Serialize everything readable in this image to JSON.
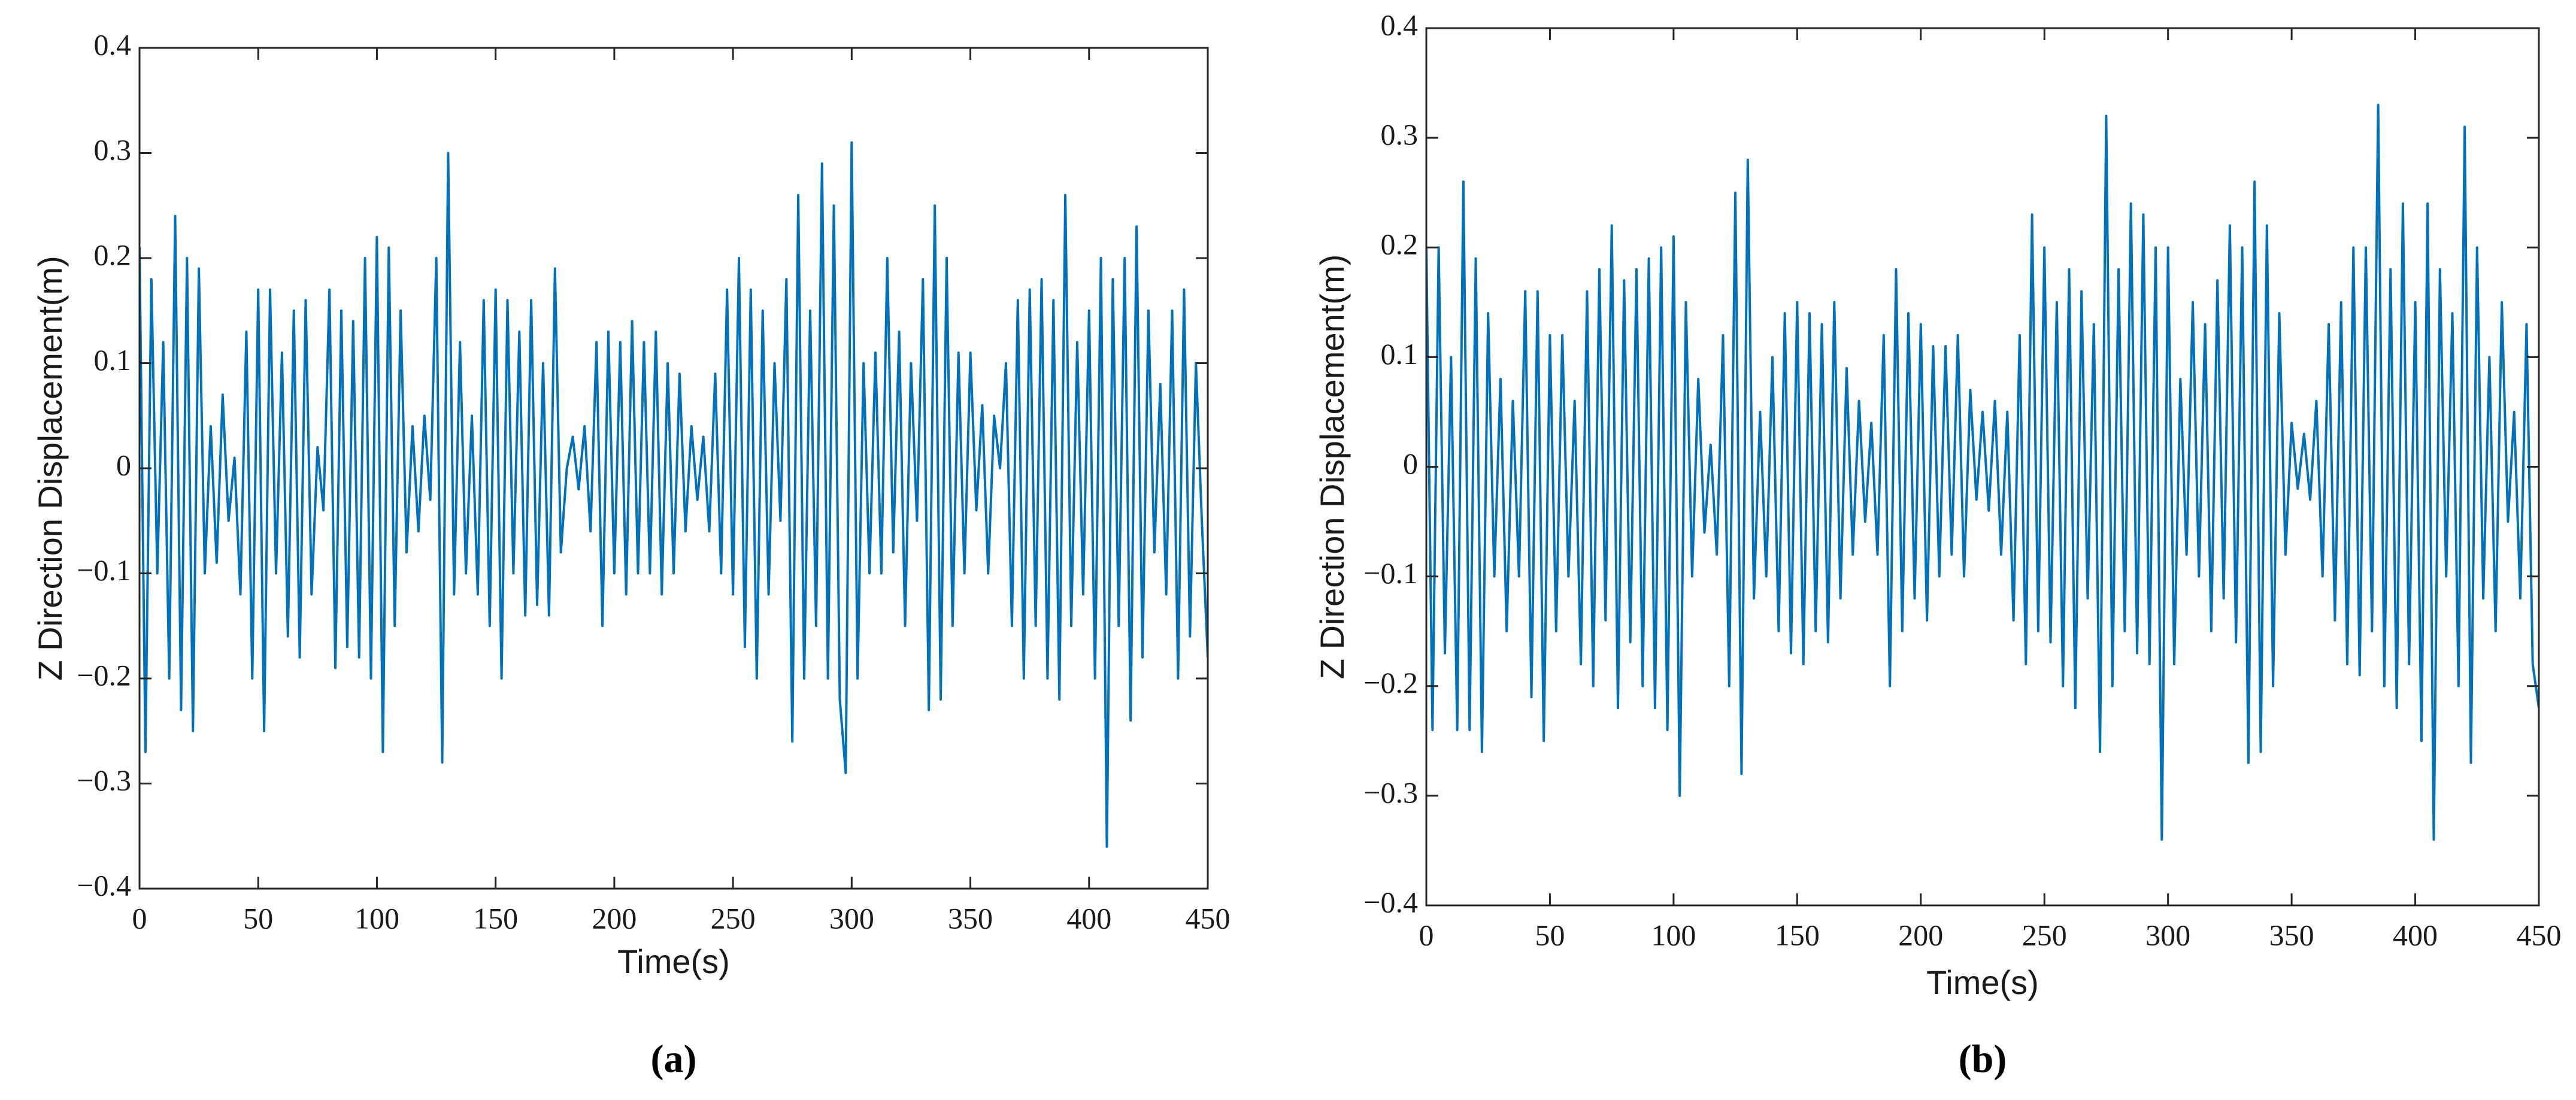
{
  "chart_data": [
    {
      "type": "line",
      "label": "(a)",
      "xlabel": "Time(s)",
      "ylabel": "Z Direction Displacement(m)",
      "color": "#0072bd",
      "xlim": [
        0,
        450
      ],
      "ylim": [
        -0.4,
        0.4
      ],
      "xticks": [
        0,
        50,
        100,
        150,
        200,
        250,
        300,
        350,
        400,
        450
      ],
      "yticks": [
        {
          "value": -0.4,
          "label": "−0.4"
        },
        {
          "value": -0.3,
          "label": "−0.3"
        },
        {
          "value": -0.2,
          "label": "−0.2"
        },
        {
          "value": -0.1,
          "label": "−0.1"
        },
        0,
        0.1,
        0.2,
        0.3,
        0.4
      ],
      "x": [
        0,
        2.5,
        5,
        7.5,
        10,
        12.5,
        15,
        17.5,
        20,
        22.5,
        25,
        27.5,
        30,
        32.5,
        35,
        37.5,
        40,
        42.5,
        45,
        47.5,
        50,
        52.5,
        55,
        57.5,
        60,
        62.5,
        65,
        67.5,
        70,
        72.5,
        75,
        77.5,
        80,
        82.5,
        85,
        87.5,
        90,
        92.5,
        95,
        97.5,
        100,
        102.5,
        105,
        107.5,
        110,
        112.5,
        115,
        117.5,
        120,
        122.5,
        125,
        127.5,
        130,
        132.5,
        135,
        137.5,
        140,
        142.5,
        145,
        147.5,
        150,
        152.5,
        155,
        157.5,
        160,
        162.5,
        165,
        167.5,
        170,
        172.5,
        175,
        177.5,
        180,
        182.5,
        185,
        187.5,
        190,
        192.5,
        195,
        197.5,
        200,
        202.5,
        205,
        207.5,
        210,
        212.5,
        215,
        217.5,
        220,
        222.5,
        225,
        227.5,
        230,
        232.5,
        235,
        237.5,
        240,
        242.5,
        245,
        247.5,
        250,
        252.5,
        255,
        257.5,
        260,
        262.5,
        265,
        267.5,
        270,
        272.5,
        275,
        277.5,
        280,
        282.5,
        285,
        287.5,
        290,
        292.5,
        295,
        297.5,
        300,
        302.5,
        305,
        307.5,
        310,
        312.5,
        315,
        317.5,
        320,
        322.5,
        325,
        327.5,
        330,
        332.5,
        335,
        337.5,
        340,
        342.5,
        345,
        347.5,
        350,
        352.5,
        355,
        357.5,
        360,
        362.5,
        365,
        367.5,
        370,
        372.5,
        375,
        377.5,
        380,
        382.5,
        385,
        387.5,
        390,
        392.5,
        395,
        397.5,
        400,
        402.5,
        405,
        407.5,
        410,
        412.5,
        415,
        417.5,
        420,
        422.5,
        425,
        427.5,
        430,
        432.5,
        435,
        437.5,
        440,
        442.5,
        445,
        447.5,
        450
      ],
      "values": [
        0.21,
        -0.27,
        0.18,
        -0.1,
        0.12,
        -0.2,
        0.24,
        -0.23,
        0.2,
        -0.25,
        0.19,
        -0.1,
        0.04,
        -0.09,
        0.07,
        -0.05,
        0.01,
        -0.12,
        0.13,
        -0.2,
        0.17,
        -0.25,
        0.17,
        -0.1,
        0.11,
        -0.16,
        0.15,
        -0.18,
        0.16,
        -0.12,
        0.02,
        -0.04,
        0.17,
        -0.19,
        0.15,
        -0.17,
        0.14,
        -0.18,
        0.2,
        -0.2,
        0.22,
        -0.27,
        0.21,
        -0.15,
        0.15,
        -0.08,
        0.04,
        -0.06,
        0.05,
        -0.03,
        0.2,
        -0.28,
        0.3,
        -0.12,
        0.12,
        -0.1,
        0.05,
        -0.12,
        0.16,
        -0.15,
        0.17,
        -0.2,
        0.16,
        -0.1,
        0.13,
        -0.14,
        0.16,
        -0.13,
        0.1,
        -0.14,
        0.19,
        -0.08,
        0,
        0.03,
        -0.02,
        0.04,
        -0.06,
        0.12,
        -0.15,
        0.13,
        -0.1,
        0.12,
        -0.12,
        0.14,
        -0.1,
        0.12,
        -0.1,
        0.13,
        -0.12,
        0.1,
        -0.1,
        0.09,
        -0.06,
        0.04,
        -0.03,
        0.03,
        -0.06,
        0.09,
        -0.1,
        0.17,
        -0.12,
        0.2,
        -0.17,
        0.17,
        -0.2,
        0.15,
        -0.12,
        0.1,
        -0.05,
        0.18,
        -0.26,
        0.26,
        -0.2,
        0.15,
        -0.15,
        0.29,
        -0.2,
        0.25,
        -0.22,
        -0.29,
        0.31,
        -0.2,
        0.1,
        -0.1,
        0.11,
        -0.1,
        0.2,
        -0.08,
        0.13,
        -0.15,
        0.1,
        -0.05,
        0.18,
        -0.23,
        0.25,
        -0.22,
        0.2,
        -0.15,
        0.11,
        -0.1,
        0.11,
        -0.04,
        0.06,
        -0.1,
        0.05,
        0,
        0.1,
        -0.15,
        0.16,
        -0.2,
        0.17,
        -0.15,
        0.18,
        -0.2,
        0.16,
        -0.22,
        0.26,
        -0.15,
        0.12,
        -0.12,
        0.15,
        -0.2,
        0.2,
        -0.36,
        0.18,
        -0.15,
        0.2,
        -0.24,
        0.23,
        -0.18,
        0.15,
        -0.08,
        0.08,
        -0.12,
        0.15,
        -0.2,
        0.17,
        -0.16,
        0.1,
        -0.05,
        -0.18
      ]
    },
    {
      "type": "line",
      "label": "(b)",
      "xlabel": "Time(s)",
      "ylabel": "Z Direction Displacement(m)",
      "color": "#0072bd",
      "xlim": [
        0,
        450
      ],
      "ylim": [
        -0.4,
        0.4
      ],
      "xticks": [
        0,
        50,
        100,
        150,
        200,
        250,
        300,
        350,
        400,
        450
      ],
      "yticks": [
        {
          "value": -0.4,
          "label": "−0.4"
        },
        {
          "value": -0.3,
          "label": "−0.3"
        },
        {
          "value": -0.2,
          "label": "−0.2"
        },
        {
          "value": -0.1,
          "label": "−0.1"
        },
        0,
        0.1,
        0.2,
        0.3,
        0.4
      ],
      "x": [
        0,
        2.5,
        5,
        7.5,
        10,
        12.5,
        15,
        17.5,
        20,
        22.5,
        25,
        27.5,
        30,
        32.5,
        35,
        37.5,
        40,
        42.5,
        45,
        47.5,
        50,
        52.5,
        55,
        57.5,
        60,
        62.5,
        65,
        67.5,
        70,
        72.5,
        75,
        77.5,
        80,
        82.5,
        85,
        87.5,
        90,
        92.5,
        95,
        97.5,
        100,
        102.5,
        105,
        107.5,
        110,
        112.5,
        115,
        117.5,
        120,
        122.5,
        125,
        127.5,
        130,
        132.5,
        135,
        137.5,
        140,
        142.5,
        145,
        147.5,
        150,
        152.5,
        155,
        157.5,
        160,
        162.5,
        165,
        167.5,
        170,
        172.5,
        175,
        177.5,
        180,
        182.5,
        185,
        187.5,
        190,
        192.5,
        195,
        197.5,
        200,
        202.5,
        205,
        207.5,
        210,
        212.5,
        215,
        217.5,
        220,
        222.5,
        225,
        227.5,
        230,
        232.5,
        235,
        237.5,
        240,
        242.5,
        245,
        247.5,
        250,
        252.5,
        255,
        257.5,
        260,
        262.5,
        265,
        267.5,
        270,
        272.5,
        275,
        277.5,
        280,
        282.5,
        285,
        287.5,
        290,
        292.5,
        295,
        297.5,
        300,
        302.5,
        305,
        307.5,
        310,
        312.5,
        315,
        317.5,
        320,
        322.5,
        325,
        327.5,
        330,
        332.5,
        335,
        337.5,
        340,
        342.5,
        345,
        347.5,
        350,
        352.5,
        355,
        357.5,
        360,
        362.5,
        365,
        367.5,
        370,
        372.5,
        375,
        377.5,
        380,
        382.5,
        385,
        387.5,
        390,
        392.5,
        395,
        397.5,
        400,
        402.5,
        405,
        407.5,
        410,
        412.5,
        415,
        417.5,
        420,
        422.5,
        425,
        427.5,
        430,
        432.5,
        435,
        437.5,
        440,
        442.5,
        445,
        447.5,
        450
      ],
      "values": [
        0.2,
        -0.24,
        0.2,
        -0.17,
        0.1,
        -0.24,
        0.26,
        -0.24,
        0.19,
        -0.26,
        0.14,
        -0.1,
        0.08,
        -0.15,
        0.06,
        -0.1,
        0.16,
        -0.21,
        0.16,
        -0.25,
        0.12,
        -0.15,
        0.12,
        -0.1,
        0.06,
        -0.18,
        0.16,
        -0.2,
        0.18,
        -0.14,
        0.22,
        -0.22,
        0.17,
        -0.16,
        0.18,
        -0.2,
        0.19,
        -0.22,
        0.2,
        -0.24,
        0.21,
        -0.3,
        0.15,
        -0.1,
        0.08,
        -0.06,
        0.02,
        -0.08,
        0.12,
        -0.2,
        0.25,
        -0.28,
        0.28,
        -0.12,
        0.05,
        -0.1,
        0.1,
        -0.15,
        0.14,
        -0.17,
        0.15,
        -0.18,
        0.14,
        -0.15,
        0.13,
        -0.16,
        0.15,
        -0.12,
        0.09,
        -0.08,
        0.06,
        -0.05,
        0.04,
        -0.08,
        0.12,
        -0.2,
        0.18,
        -0.15,
        0.14,
        -0.12,
        0.13,
        -0.14,
        0.11,
        -0.1,
        0.11,
        -0.08,
        0.12,
        -0.1,
        0.07,
        -0.03,
        0.05,
        -0.04,
        0.06,
        -0.08,
        0.05,
        -0.14,
        0.12,
        -0.18,
        0.23,
        -0.15,
        0.2,
        -0.16,
        0.15,
        -0.2,
        0.18,
        -0.22,
        0.16,
        -0.12,
        0.13,
        -0.26,
        0.32,
        -0.2,
        0.18,
        -0.15,
        0.24,
        -0.17,
        0.23,
        -0.18,
        0.2,
        -0.34,
        0.2,
        -0.18,
        0.08,
        -0.08,
        0.15,
        -0.1,
        0.13,
        -0.15,
        0.17,
        -0.12,
        0.22,
        -0.16,
        0.2,
        -0.27,
        0.26,
        -0.26,
        0.22,
        -0.2,
        0.14,
        -0.08,
        0.04,
        -0.02,
        0.03,
        -0.03,
        0.06,
        -0.1,
        0.13,
        -0.14,
        0.15,
        -0.18,
        0.2,
        -0.19,
        0.2,
        -0.15,
        0.33,
        -0.2,
        0.18,
        -0.22,
        0.24,
        -0.18,
        0.15,
        -0.25,
        0.24,
        -0.34,
        0.18,
        -0.1,
        0.14,
        -0.2,
        0.31,
        -0.27,
        0.2,
        -0.12,
        0.1,
        -0.15,
        0.15,
        -0.05,
        0.05,
        -0.12,
        0.13,
        -0.18,
        -0.22
      ]
    }
  ]
}
